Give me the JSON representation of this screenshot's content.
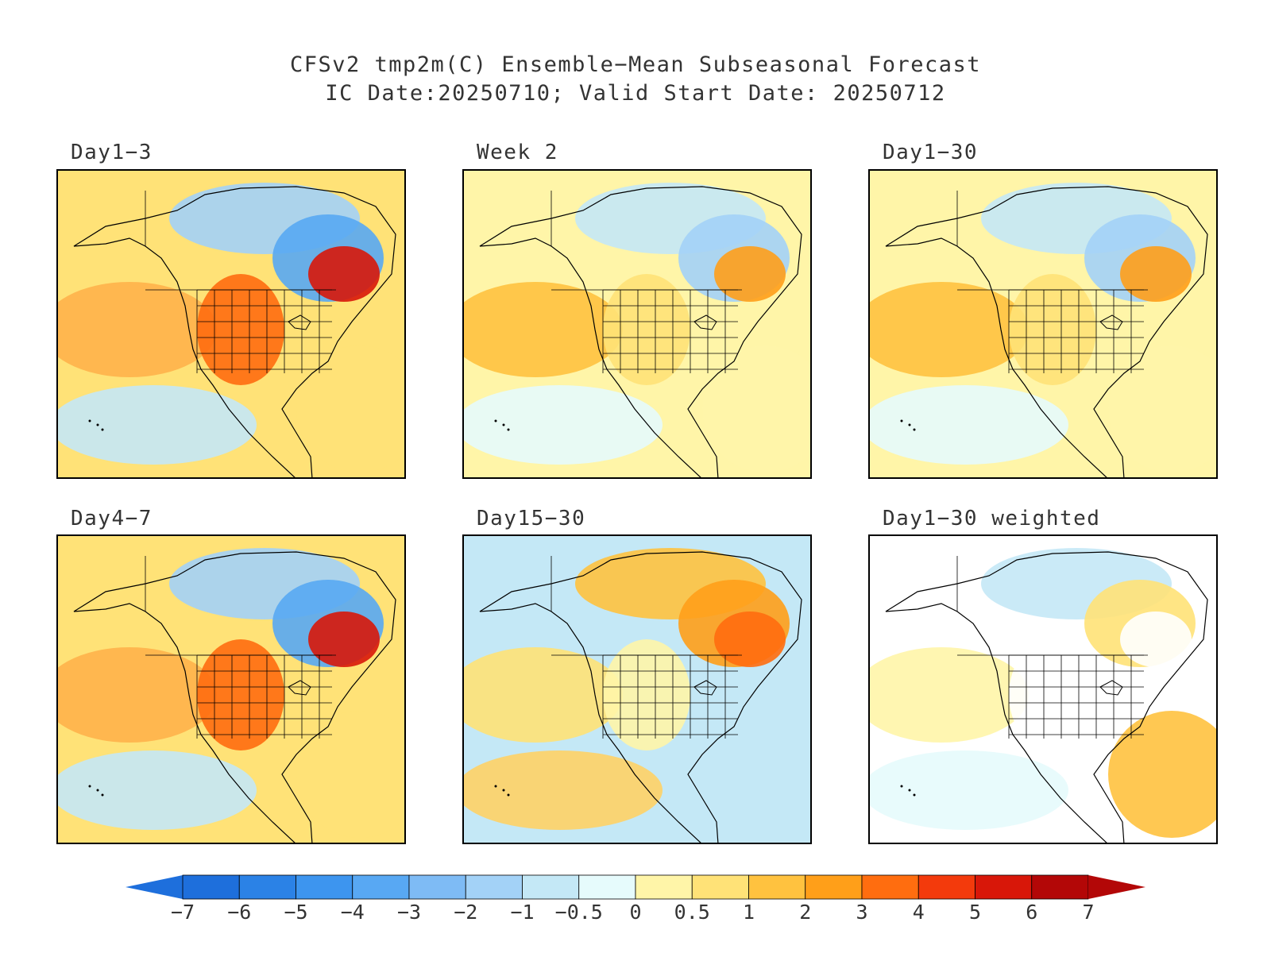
{
  "title": {
    "line1": "CFSv2 tmp2m(C) Ensemble−Mean Subseasonal Forecast",
    "line2": "IC Date:20250710; Valid Start Date: 20250712"
  },
  "panels": [
    {
      "label": "Day1−3",
      "tone": "mixed-strong"
    },
    {
      "label": "Week 2",
      "tone": "mixed-mild"
    },
    {
      "label": "Day1−30",
      "tone": "mixed-mild"
    },
    {
      "label": "Day4−7",
      "tone": "mixed-strong"
    },
    {
      "label": "Day15−30",
      "tone": "warm"
    },
    {
      "label": "Day1−30 weighted",
      "tone": "weighted"
    }
  ],
  "colorbar": {
    "ticks": [
      "−7",
      "−6",
      "−5",
      "−4",
      "−3",
      "−2",
      "−1",
      "−0.5",
      "0",
      "0.5",
      "1",
      "2",
      "3",
      "4",
      "5",
      "6",
      "7"
    ],
    "colors": [
      "#1e6fdc",
      "#2b82e6",
      "#3d95ef",
      "#58a8f3",
      "#7ebbf5",
      "#a3d2f7",
      "#c4e8f6",
      "#e6fbfc",
      "#fff5a8",
      "#ffe277",
      "#ffc23f",
      "#ff9f19",
      "#ff6d0f",
      "#f33a0c",
      "#d81709",
      "#b30707"
    ],
    "low_color": "#1e6fdc",
    "high_color": "#b30707"
  }
}
